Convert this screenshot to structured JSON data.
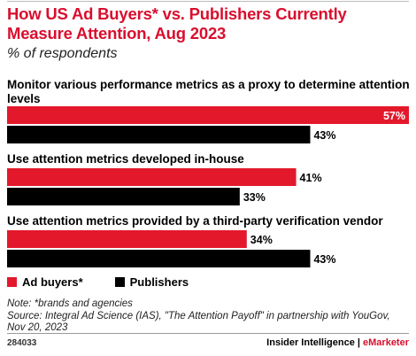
{
  "title": "How US Ad Buyers* vs. Publishers Currently Measure Attention, Aug 2023",
  "subtitle": "% of respondents",
  "colors": {
    "ad_buyers": "#e3192b",
    "publishers": "#000000",
    "title": "#d90e2d"
  },
  "chart_data": {
    "type": "bar",
    "orientation": "horizontal",
    "categories": [
      "Monitor various performance metrics as a proxy to determine attention levels",
      "Use attention metrics developed in-house",
      "Use attention metrics provided by a third-party verification vendor"
    ],
    "series": [
      {
        "name": "Ad buyers*",
        "values": [
          57,
          41,
          34
        ]
      },
      {
        "name": "Publishers",
        "values": [
          43,
          33,
          43
        ]
      }
    ],
    "value_suffix": "%",
    "xlim": [
      0,
      57
    ],
    "grid": false,
    "legend": "bottom-left"
  },
  "legend": {
    "ad_buyers": "Ad buyers*",
    "publishers": "Publishers"
  },
  "notes": {
    "note": "Note: *brands and agencies",
    "source": "Source: Integral Ad Science (IAS), \"The Attention Payoff\" in partnership with YouGov, Nov 20, 2023"
  },
  "footer": {
    "id": "284033",
    "brand_left": "Insider Intelligence",
    "separator": "|",
    "brand_right": "eMarketer"
  }
}
